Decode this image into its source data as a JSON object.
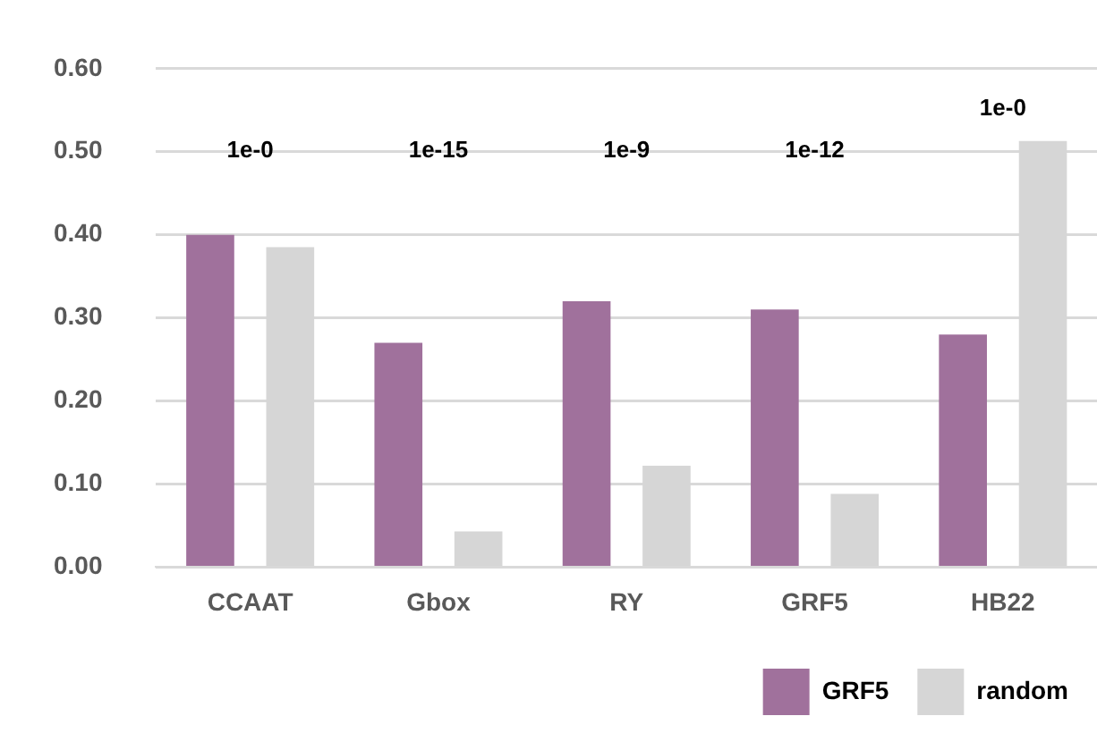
{
  "chart_data": {
    "type": "bar",
    "categories": [
      "CCAAT",
      "Gbox",
      "RY",
      "GRF5",
      "HB22"
    ],
    "series": [
      {
        "name": "GRF5",
        "color": "#a0719c",
        "values": [
          0.4,
          0.27,
          0.32,
          0.31,
          0.28
        ]
      },
      {
        "name": "random",
        "color": "#d6d6d6",
        "values": [
          0.385,
          0.043,
          0.122,
          0.088,
          0.513
        ]
      }
    ],
    "ylim": [
      0,
      0.6
    ],
    "yticks": [
      {
        "value": 0,
        "label": "0.00"
      },
      {
        "value": 0.1,
        "label": "0.10"
      },
      {
        "value": 0.2,
        "label": "0.20"
      },
      {
        "value": 0.3,
        "label": "0.30"
      },
      {
        "value": 0.4,
        "label": "0.40"
      },
      {
        "value": 0.5,
        "label": "0.50"
      },
      {
        "value": 0.6,
        "label": "0.60"
      }
    ],
    "grid": "y",
    "legend": "bottom right",
    "annotations": [
      "1e-0",
      "1e-15",
      "1e-9",
      "1e-12",
      "1e-0"
    ]
  }
}
